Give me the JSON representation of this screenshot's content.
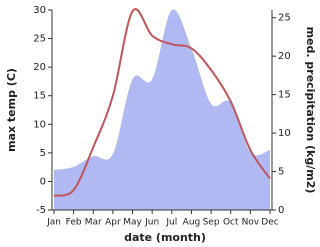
{
  "chart_data": {
    "type": "line",
    "xlabel": "date (month)",
    "ylabel": "max temp (C)",
    "y2label": "med. precipitation (kg/m2)",
    "categories": [
      "Jan",
      "Feb",
      "Mar",
      "Apr",
      "May",
      "Jun",
      "Jul",
      "Aug",
      "Sep",
      "Oct",
      "Nov",
      "Dec"
    ],
    "ylim": [
      -5,
      30
    ],
    "yticks": [
      -5,
      0,
      5,
      10,
      15,
      20,
      25,
      30
    ],
    "y2lim": [
      0,
      26
    ],
    "y2ticks": [
      0,
      5,
      10,
      15,
      20,
      25
    ],
    "series": [
      {
        "kind": "area",
        "axis": "y2",
        "color": "#b0b9f2",
        "values": [
          5.2,
          5.6,
          7.0,
          7.3,
          17.0,
          17.0,
          26.0,
          21.0,
          13.8,
          14.0,
          7.5,
          7.8
        ]
      },
      {
        "kind": "line",
        "axis": "y",
        "color": "#c0555a",
        "values": [
          -2.5,
          -1.5,
          6.0,
          15.0,
          29.8,
          25.5,
          24.0,
          23.3,
          19.5,
          14.0,
          5.5,
          0.5
        ]
      }
    ]
  }
}
